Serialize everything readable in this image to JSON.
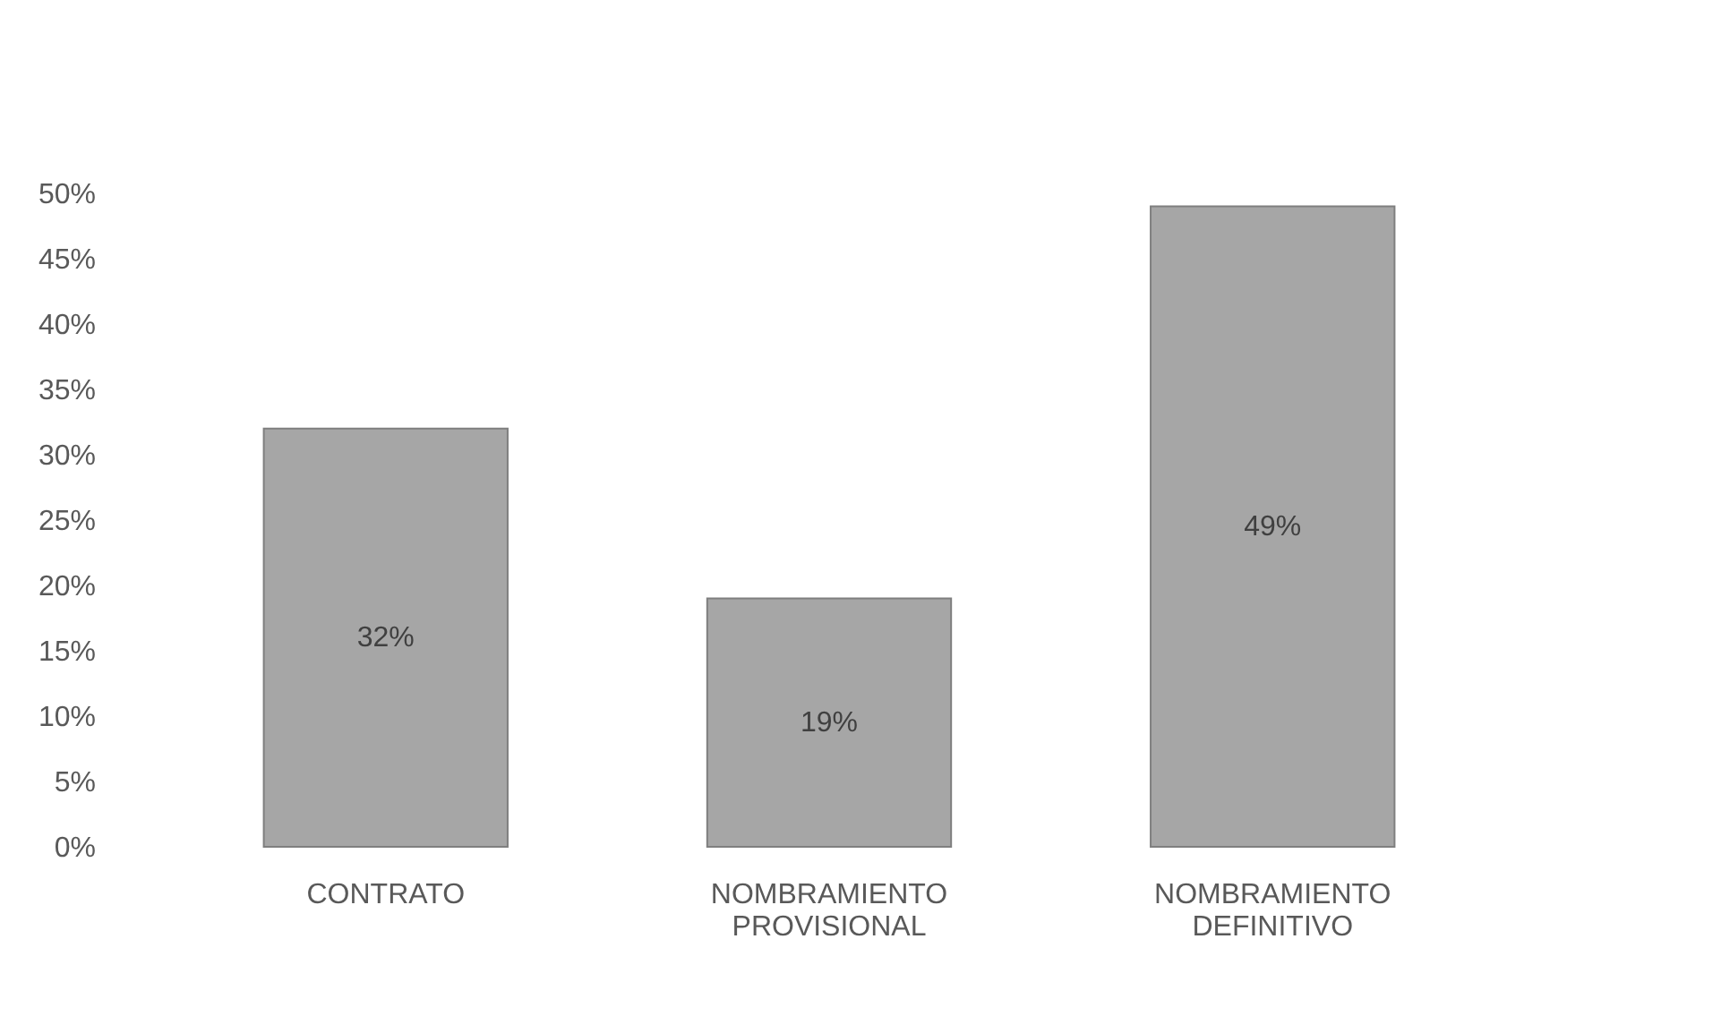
{
  "chart_data": {
    "type": "bar",
    "categories": [
      "CONTRATO",
      "NOMBRAMIENTO PROVISIONAL",
      "NOMBRAMIENTO DEFINITIVO"
    ],
    "values": [
      32,
      19,
      49
    ],
    "value_labels": [
      "32%",
      "19%",
      "49%"
    ],
    "color": "#a6a6a6",
    "ylim": [
      0,
      50
    ],
    "yticks": [
      {
        "value": 0,
        "label": "0%"
      },
      {
        "value": 5,
        "label": "5%"
      },
      {
        "value": 10,
        "label": "10%"
      },
      {
        "value": 15,
        "label": "15%"
      },
      {
        "value": 20,
        "label": "20%"
      },
      {
        "value": 25,
        "label": "25%"
      },
      {
        "value": 30,
        "label": "30%"
      },
      {
        "value": 35,
        "label": "35%"
      },
      {
        "value": 40,
        "label": "40%"
      },
      {
        "value": 45,
        "label": "45%"
      },
      {
        "value": 50,
        "label": "50%"
      }
    ],
    "grid": false
  }
}
